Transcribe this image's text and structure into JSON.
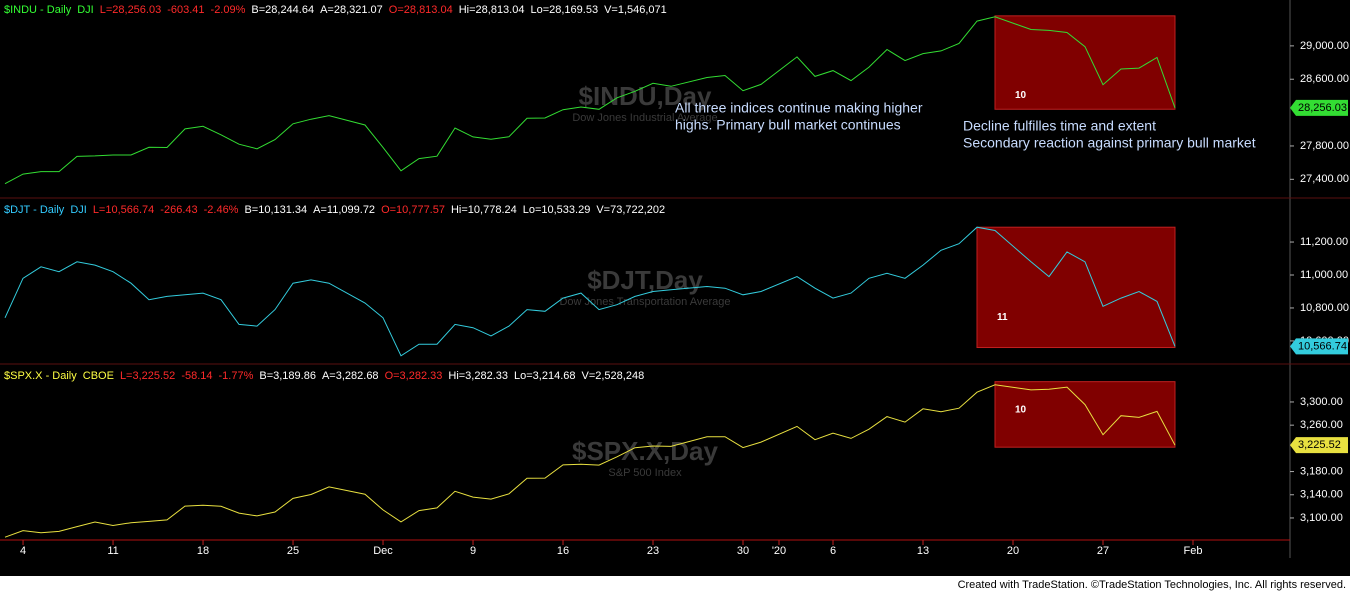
{
  "chart_data": [
    {
      "type": "line",
      "header": [
        {
          "text": "$INDU - Daily",
          "color": "#33ff33"
        },
        {
          "text": "DJI",
          "color": "#33ff33"
        },
        {
          "text": "L=28,256.03",
          "color": "#ff2a2a"
        },
        {
          "text": "-603.41",
          "color": "#ff2a2a"
        },
        {
          "text": "-2.09%",
          "color": "#ff2a2a"
        },
        {
          "text": "B=28,244.64",
          "color": "#ffffff"
        },
        {
          "text": "A=28,321.07",
          "color": "#ffffff"
        },
        {
          "text": "O=28,813.04",
          "color": "#ff2a2a"
        },
        {
          "text": "Hi=28,813.04",
          "color": "#ffffff"
        },
        {
          "text": "Lo=28,169.53",
          "color": "#ffffff"
        },
        {
          "text": "V=1,546,071",
          "color": "#ffffff"
        }
      ],
      "watermark": "$INDU,Day",
      "watermark_sub": "Dow Jones Industrial Average",
      "x": [
        0,
        1,
        2,
        3,
        4,
        5,
        6,
        7,
        8,
        9,
        10,
        11,
        12,
        13,
        14,
        15,
        16,
        17,
        18,
        20,
        21,
        22,
        23,
        24,
        25,
        26,
        27,
        28,
        29,
        30,
        31,
        32,
        33,
        34,
        35,
        36,
        37,
        39,
        40,
        41,
        42,
        44,
        45,
        46,
        47,
        48,
        49,
        50,
        51,
        52,
        53,
        54,
        55,
        57,
        58,
        59,
        60,
        61,
        62,
        63,
        64,
        65
      ],
      "xlim": [
        -0.28,
        71.39
      ],
      "series": [
        {
          "name": "$INDU",
          "color": "#33dd33",
          "values": [
            27347,
            27462,
            27492,
            27493,
            27675,
            27681,
            27691,
            27691,
            27784,
            27782,
            28005,
            28036,
            27934,
            27821,
            27766,
            27876,
            28066,
            28121,
            28164,
            28051,
            27783,
            27502,
            27649,
            27677,
            28015,
            27909,
            27881,
            27911,
            28132,
            28135,
            28235,
            28267,
            28239,
            28377,
            28455,
            28551,
            28515,
            28621,
            28645,
            28462,
            28538,
            28868,
            28634,
            28703,
            28584,
            28745,
            28957,
            28823,
            28907,
            28940,
            29030,
            29297,
            29348,
            29196,
            29186,
            29160,
            28990,
            28535,
            28723,
            28734,
            28860,
            28256.03
          ]
        }
      ],
      "last_label": "28,256.03",
      "ylim": [
        27200,
        29550
      ],
      "yticks": [
        {
          "value": 27400,
          "label": "27,400.00"
        },
        {
          "value": 27800,
          "label": "27,800.00"
        },
        {
          "value": 28600,
          "label": "28,600.00"
        },
        {
          "value": 29000,
          "label": "29,000.00"
        }
      ],
      "box": {
        "x": [
          55,
          65
        ],
        "y": [
          28240,
          29360
        ],
        "label": "10"
      },
      "annotations": [
        {
          "lines": [
            "All three indices continue making higher",
            "highs. Primary bull market continues"
          ]
        },
        {
          "lines": [
            "Decline fulfilles time and extent",
            "Secondary reaction against primary bull market"
          ]
        }
      ]
    },
    {
      "type": "line",
      "header": [
        {
          "text": "$DJT - Daily",
          "color": "#33ccff"
        },
        {
          "text": "DJI",
          "color": "#33ccff"
        },
        {
          "text": "L=10,566.74",
          "color": "#ff2a2a"
        },
        {
          "text": "-266.43",
          "color": "#ff2a2a"
        },
        {
          "text": "-2.46%",
          "color": "#ff2a2a"
        },
        {
          "text": "B=10,131.34",
          "color": "#ffffff"
        },
        {
          "text": "A=11,099.72",
          "color": "#ffffff"
        },
        {
          "text": "O=10,777.57",
          "color": "#ff2a2a"
        },
        {
          "text": "Hi=10,778.24",
          "color": "#ffffff"
        },
        {
          "text": "Lo=10,533.29",
          "color": "#ffffff"
        },
        {
          "text": "V=73,722,202",
          "color": "#ffffff"
        }
      ],
      "watermark": "$DJT,Day",
      "watermark_sub": "Dow Jones Transportation Average",
      "x": [
        0,
        1,
        2,
        3,
        4,
        5,
        6,
        7,
        8,
        9,
        10,
        11,
        12,
        13,
        14,
        15,
        16,
        17,
        18,
        20,
        21,
        22,
        23,
        24,
        25,
        26,
        27,
        28,
        29,
        30,
        31,
        32,
        33,
        34,
        35,
        36,
        37,
        39,
        40,
        41,
        42,
        44,
        45,
        46,
        47,
        48,
        49,
        50,
        51,
        52,
        53,
        54,
        55,
        57,
        58,
        59,
        60,
        61,
        62,
        63,
        64,
        65
      ],
      "xlim": [
        -0.28,
        71.39
      ],
      "series": [
        {
          "name": "$DJT",
          "color": "#33ccdd",
          "values": [
            10740,
            10980,
            11050,
            11020,
            11080,
            11060,
            11020,
            10950,
            10850,
            10870,
            10880,
            10890,
            10850,
            10700,
            10690,
            10790,
            10950,
            10970,
            10950,
            10830,
            10740,
            10510,
            10580,
            10580,
            10700,
            10680,
            10630,
            10690,
            10790,
            10780,
            10860,
            10890,
            10790,
            10820,
            10870,
            10900,
            10910,
            10930,
            10920,
            10880,
            10900,
            10990,
            10920,
            10860,
            10890,
            10980,
            11010,
            10980,
            11060,
            11150,
            11190,
            11290,
            11270,
            11080,
            10990,
            11140,
            11080,
            10810,
            10860,
            10900,
            10840,
            10566.74
          ]
        }
      ],
      "last_label": "10,566.74",
      "ylim": [
        10460,
        11455
      ],
      "yticks": [
        {
          "value": 10600,
          "label": "10,600.00"
        },
        {
          "value": 10800,
          "label": "10,800.00"
        },
        {
          "value": 11000,
          "label": "11,000.00"
        },
        {
          "value": 11200,
          "label": "11,200.00"
        }
      ],
      "box": {
        "x": [
          54,
          65
        ],
        "y": [
          10560,
          11290
        ],
        "label": "11"
      }
    },
    {
      "type": "line",
      "header": [
        {
          "text": "$SPX.X - Daily",
          "color": "#ffff44"
        },
        {
          "text": "CBOE",
          "color": "#ffff44"
        },
        {
          "text": "L=3,225.52",
          "color": "#ff2a2a"
        },
        {
          "text": "-58.14",
          "color": "#ff2a2a"
        },
        {
          "text": "-1.77%",
          "color": "#ff2a2a"
        },
        {
          "text": "B=3,189.86",
          "color": "#ffffff"
        },
        {
          "text": "A=3,282.68",
          "color": "#ffffff"
        },
        {
          "text": "O=3,282.33",
          "color": "#ff2a2a"
        },
        {
          "text": "Hi=3,282.33",
          "color": "#ffffff"
        },
        {
          "text": "Lo=3,214.68",
          "color": "#ffffff"
        },
        {
          "text": "V=2,528,248",
          "color": "#ffffff"
        }
      ],
      "watermark": "$SPX.X,Day",
      "watermark_sub": "S&P 500 Index",
      "x": [
        0,
        1,
        2,
        3,
        4,
        5,
        6,
        7,
        8,
        9,
        10,
        11,
        12,
        13,
        14,
        15,
        16,
        17,
        18,
        20,
        21,
        22,
        23,
        24,
        25,
        26,
        27,
        28,
        29,
        30,
        31,
        32,
        33,
        34,
        35,
        36,
        37,
        39,
        40,
        41,
        42,
        44,
        45,
        46,
        47,
        48,
        49,
        50,
        51,
        52,
        53,
        54,
        55,
        57,
        58,
        59,
        60,
        61,
        62,
        63,
        64,
        65
      ],
      "xlim": [
        -0.28,
        71.39
      ],
      "xticks": [
        {
          "value": 1,
          "label": "4"
        },
        {
          "value": 6,
          "label": "11"
        },
        {
          "value": 11,
          "label": "18"
        },
        {
          "value": 16,
          "label": "25"
        },
        {
          "value": 21,
          "label": "Dec"
        },
        {
          "value": 26,
          "label": "9"
        },
        {
          "value": 31,
          "label": "16"
        },
        {
          "value": 36,
          "label": "23"
        },
        {
          "value": 41,
          "label": "30"
        },
        {
          "value": 43,
          "label": "'20"
        },
        {
          "value": 46,
          "label": "6"
        },
        {
          "value": 51,
          "label": "13"
        },
        {
          "value": 56,
          "label": "20"
        },
        {
          "value": 61,
          "label": "27"
        },
        {
          "value": 66,
          "label": "Feb"
        }
      ],
      "series": [
        {
          "name": "$SPX.X",
          "color": "#e8e040",
          "values": [
            3066.91,
            3078.27,
            3074.62,
            3076.78,
            3085.18,
            3093.08,
            3087.01,
            3091.84,
            3094.04,
            3096.63,
            3120.46,
            3122.03,
            3120.18,
            3108.46,
            3103.54,
            3110.29,
            3133.64,
            3140.52,
            3153.63,
            3140.98,
            3113.87,
            3093.2,
            3112.76,
            3117.43,
            3145.91,
            3135.96,
            3132.52,
            3141.63,
            3168.57,
            3168.8,
            3191.45,
            3192.52,
            3191.14,
            3205.37,
            3221.22,
            3224.01,
            3223.38,
            3239.91,
            3240.02,
            3221.29,
            3230.78,
            3257.85,
            3234.85,
            3246.28,
            3237.18,
            3253.05,
            3274.7,
            3265.35,
            3288.13,
            3283.15,
            3289.29,
            3316.81,
            3329.62,
            3320.79,
            3321.75,
            3325.54,
            3295.47,
            3243.63,
            3276.24,
            3273.4,
            3283.66,
            3225.52
          ]
        }
      ],
      "last_label": "3,225.52",
      "ylim": [
        3062,
        3362
      ],
      "yticks": [
        {
          "value": 3100,
          "label": "3,100.00"
        },
        {
          "value": 3140,
          "label": "3,140.00"
        },
        {
          "value": 3180,
          "label": "3,180.00"
        },
        {
          "value": 3260,
          "label": "3,260.00"
        },
        {
          "value": 3300,
          "label": "3,300.00"
        }
      ],
      "box": {
        "x": [
          55,
          65
        ],
        "y": [
          3222,
          3335
        ],
        "label": "10"
      }
    }
  ],
  "footer": "Created with TradeStation. ©TradeStation Technologies, Inc. All rights reserved."
}
